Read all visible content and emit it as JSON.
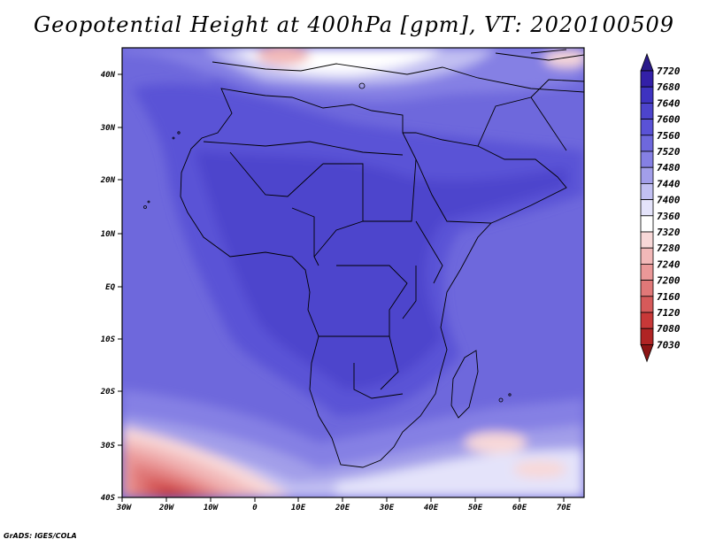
{
  "title": "Geopotential Height at 400hPa [gpm], VT: 2020100509",
  "credit": "GrADS: IGES/COLA",
  "lat_ticks": [
    "40N",
    "30N",
    "20N",
    "10N",
    "EQ",
    "10S",
    "20S",
    "30S",
    "40S"
  ],
  "lon_ticks": [
    "30W",
    "20W",
    "10W",
    "0",
    "10E",
    "20E",
    "30E",
    "40E",
    "50E",
    "60E",
    "70E"
  ],
  "colorbar": {
    "levels": [
      "7720",
      "7680",
      "7640",
      "7600",
      "7560",
      "7520",
      "7480",
      "7440",
      "7400",
      "7360",
      "7320",
      "7280",
      "7240",
      "7200",
      "7160",
      "7120",
      "7080",
      "7030"
    ],
    "colors": [
      "#2a1a8a",
      "#3320a8",
      "#3e33c0",
      "#4d44cc",
      "#5a52d6",
      "#6e68dc",
      "#8580e4",
      "#a29ee9",
      "#c2c0f2",
      "#e4e3fa",
      "#ffffff",
      "#f8d8d8",
      "#f2b8b8",
      "#ea9898",
      "#e07878",
      "#d65a5a",
      "#c83838",
      "#b02424",
      "#8c1414"
    ]
  },
  "map": {
    "field": "geopotential height at 400hPa",
    "units": "gpm",
    "valid_time": "2020100509",
    "lon_range": [
      -30,
      76
    ],
    "lat_range": [
      -40,
      45
    ]
  }
}
